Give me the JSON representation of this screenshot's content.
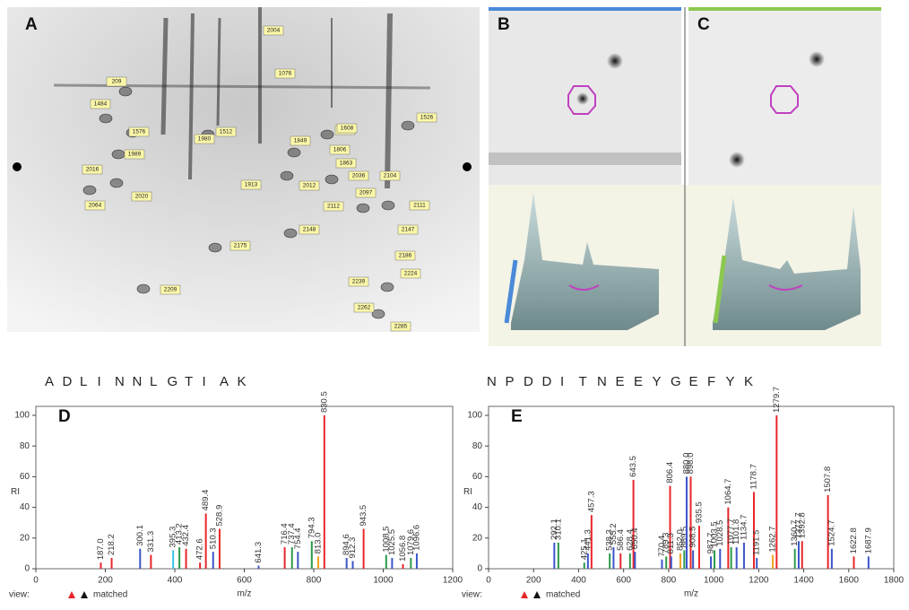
{
  "gel": {
    "panel_labels": [
      "A",
      "B",
      "C"
    ],
    "spots": [
      "2004",
      "1076",
      "209",
      "1484",
      "1576",
      "1512",
      "1980",
      "1989",
      "2016",
      "2020",
      "2064",
      "1913",
      "1849",
      "1806",
      "1838",
      "1863",
      "2036",
      "2097",
      "2104",
      "2012",
      "2112",
      "2111",
      "1526",
      "1608",
      "2148",
      "2147",
      "2175",
      "2186",
      "2224",
      "2239",
      "2209",
      "2262",
      "2285"
    ]
  },
  "chart_data": [
    {
      "type": "stem",
      "panel": "D",
      "sequence": [
        "A",
        "D",
        "L",
        "I",
        "N",
        "N",
        "L",
        "G",
        "T",
        "I",
        "A",
        "K"
      ],
      "x_label": "m/z",
      "y_label": "RI",
      "footer": [
        "view:",
        "matched"
      ],
      "xlim": [
        0,
        1200
      ],
      "xticks": [
        0,
        200,
        400,
        600,
        800,
        1000,
        1200
      ],
      "ylim": [
        0,
        100
      ],
      "yticks": [
        0,
        20,
        40,
        60,
        80,
        100
      ],
      "x": [
        187.0,
        218.2,
        300.1,
        331.3,
        395.3,
        413.2,
        432.4,
        472.6,
        489.4,
        510.3,
        528.9,
        641.3,
        716.4,
        737.4,
        754.4,
        794.3,
        813.0,
        830.5,
        894.6,
        912.3,
        943.5,
        1008.5,
        1025.5,
        1056.8,
        1079.6,
        1096.6
      ],
      "x_labels": [
        "187.0",
        "218.2",
        "300.1",
        "331.3",
        "395.3",
        "413.2",
        "432.4",
        "472.6",
        "489.4",
        "510.3",
        "528.9",
        "641.3",
        "716.4",
        "737.4",
        "754.4",
        "794.3",
        "813.0",
        "830.5",
        "894.6",
        "912.3",
        "943.5",
        "1008.5",
        "1025.5",
        "1056.8",
        "1079.6",
        "1096.6"
      ],
      "values": [
        4,
        7,
        13,
        9,
        12,
        14,
        13,
        4,
        36,
        11,
        26,
        2,
        14,
        14,
        11,
        18,
        8,
        100,
        7,
        5,
        26,
        9,
        7,
        3,
        7,
        10
      ],
      "colors": [
        "#e8262a",
        "#e8262a",
        "#3a55c8",
        "#e8262a",
        "#3ac0e0",
        "#2a9a4a",
        "#e8262a",
        "#e8262a",
        "#e8262a",
        "#3a55c8",
        "#e8262a",
        "#3a55c8",
        "#e8262a",
        "#2a9a4a",
        "#3a55c8",
        "#2a9a4a",
        "#f0a020",
        "#e8262a",
        "#3a55c8",
        "#3a55c8",
        "#e8262a",
        "#2a9a4a",
        "#3a55c8",
        "#e8262a",
        "#2a9a4a",
        "#3a55c8"
      ]
    },
    {
      "type": "stem",
      "panel": "E",
      "sequence": [
        "N",
        "P",
        "D",
        "D",
        "I",
        "T",
        "N",
        "E",
        "E",
        "Y",
        "G",
        "E",
        "F",
        "Y",
        "K"
      ],
      "x_label": "m/z",
      "y_label": "RI",
      "footer": [
        "view:",
        "matched"
      ],
      "xlim": [
        0,
        1800
      ],
      "xticks": [
        0,
        200,
        400,
        600,
        800,
        1000,
        1200,
        1400,
        1600,
        1800
      ],
      "ylim": [
        0,
        100
      ],
      "yticks": [
        0,
        20,
        40,
        60,
        80,
        100
      ],
      "x": [
        292.1,
        310.1,
        425.1,
        441.3,
        457.3,
        538.3,
        555.2,
        586.4,
        628.4,
        643.5,
        650.4,
        770.4,
        789.3,
        806.4,
        811.3,
        852.0,
        869.5,
        880.0,
        898.0,
        908.5,
        935.5,
        987.7,
        1003.5,
        1028.5,
        1064.7,
        1077.7,
        1101.8,
        1134.7,
        1178.7,
        1191.5,
        1262.7,
        1279.7,
        1360.7,
        1377.7,
        1392.8,
        1507.8,
        1524.7,
        1622.8,
        1687.9
      ],
      "x_labels": [
        "292.1",
        "310.1",
        "425.1",
        "441.3",
        "457.3",
        "538.3",
        "555.2",
        "586.4",
        "628.4",
        "643.5",
        "650.4",
        "770.4",
        "789.3",
        "806.4",
        "811.3",
        "852.0",
        "869.5",
        "880.0",
        "898.0",
        "908.5",
        "935.5",
        "987.7",
        "1003.5",
        "1028.5",
        "1064.7",
        "1077.7",
        "1101.8",
        "1134.7",
        "1178.7",
        "1191.5",
        "1262.7",
        "1279.7",
        "1360.7",
        "1377.7",
        "1392.8",
        "1507.8",
        "1524.7",
        "1622.8",
        "1687.9"
      ],
      "values": [
        17,
        17,
        4,
        10,
        35,
        10,
        14,
        10,
        10,
        58,
        11,
        6,
        8,
        54,
        8,
        10,
        12,
        60,
        60,
        12,
        28,
        8,
        12,
        13,
        40,
        14,
        14,
        17,
        50,
        7,
        9,
        100,
        13,
        18,
        18,
        48,
        13,
        8,
        8
      ],
      "colors": [
        "#3a55c8",
        "#2a9a4a",
        "#2a9a4a",
        "#3a55c8",
        "#e8262a",
        "#2a9a4a",
        "#3a55c8",
        "#e8262a",
        "#2a9a4a",
        "#e8262a",
        "#3a55c8",
        "#3a55c8",
        "#2a9a4a",
        "#e8262a",
        "#3a55c8",
        "#f0a020",
        "#2a9a4a",
        "#3a55c8",
        "#e8262a",
        "#3a55c8",
        "#e8262a",
        "#3a55c8",
        "#2a9a4a",
        "#3a55c8",
        "#e8262a",
        "#2a9a4a",
        "#3a55c8",
        "#3a55c8",
        "#e8262a",
        "#3a55c8",
        "#f0a020",
        "#e8262a",
        "#2a9a4a",
        "#3a55c8",
        "#e8262a",
        "#e8262a",
        "#3a55c8",
        "#e8262a",
        "#3a55c8"
      ]
    }
  ]
}
